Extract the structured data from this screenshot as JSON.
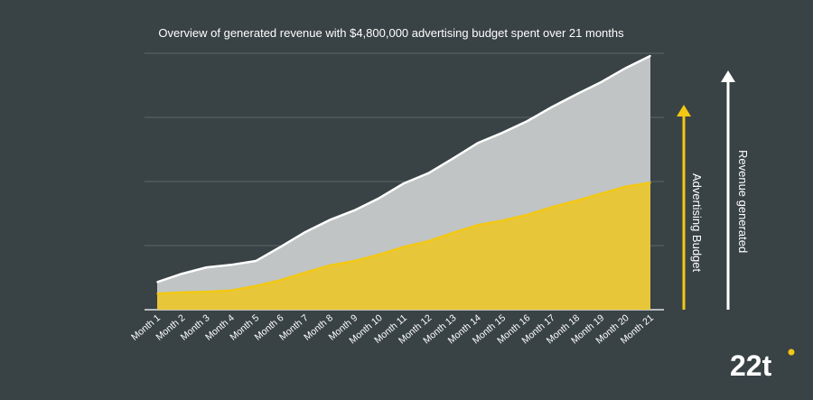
{
  "chart_data": {
    "type": "area",
    "title": "Overview of generated revenue with $4,800,000 advertising budget spent over 21 months",
    "categories": [
      "Month 1",
      "Month 2",
      "Month 3",
      "Month 4",
      "Month 5",
      "Month 6",
      "Month 7",
      "Month 8",
      "Month 9",
      "Month 10",
      "Month 11",
      "Month 12",
      "Month 13",
      "Month 14",
      "Month 15",
      "Month 16",
      "Month 17",
      "Month 18",
      "Month 19",
      "Month 20",
      "Month 21"
    ],
    "ylim": [
      0,
      4
    ],
    "gridlines": [
      1,
      2,
      3,
      4
    ],
    "series": [
      {
        "name": "Revenue generated",
        "color": "#ffffff",
        "fill": "#c0c4c5",
        "values": [
          0.43,
          0.56,
          0.66,
          0.7,
          0.76,
          0.98,
          1.21,
          1.4,
          1.55,
          1.74,
          1.97,
          2.13,
          2.36,
          2.6,
          2.76,
          2.94,
          3.16,
          3.36,
          3.55,
          3.77,
          3.96
        ]
      },
      {
        "name": "Advertising Budget",
        "color": "#f2c814",
        "fill": "#e8c63a",
        "values": [
          0.25,
          0.27,
          0.28,
          0.3,
          0.37,
          0.46,
          0.58,
          0.69,
          0.76,
          0.86,
          0.98,
          1.07,
          1.2,
          1.32,
          1.39,
          1.48,
          1.6,
          1.7,
          1.81,
          1.92,
          1.98
        ]
      }
    ],
    "axis_labels": {
      "budget": "Advertising Budget",
      "revenue": "Revenue generated"
    },
    "grid": true,
    "legend": "none"
  },
  "logo": {
    "text": "22t",
    "dot_color": "#f2c814"
  },
  "colors": {
    "background": "#394245",
    "grid": "#5d6669",
    "axis": "#dfe2e3"
  }
}
